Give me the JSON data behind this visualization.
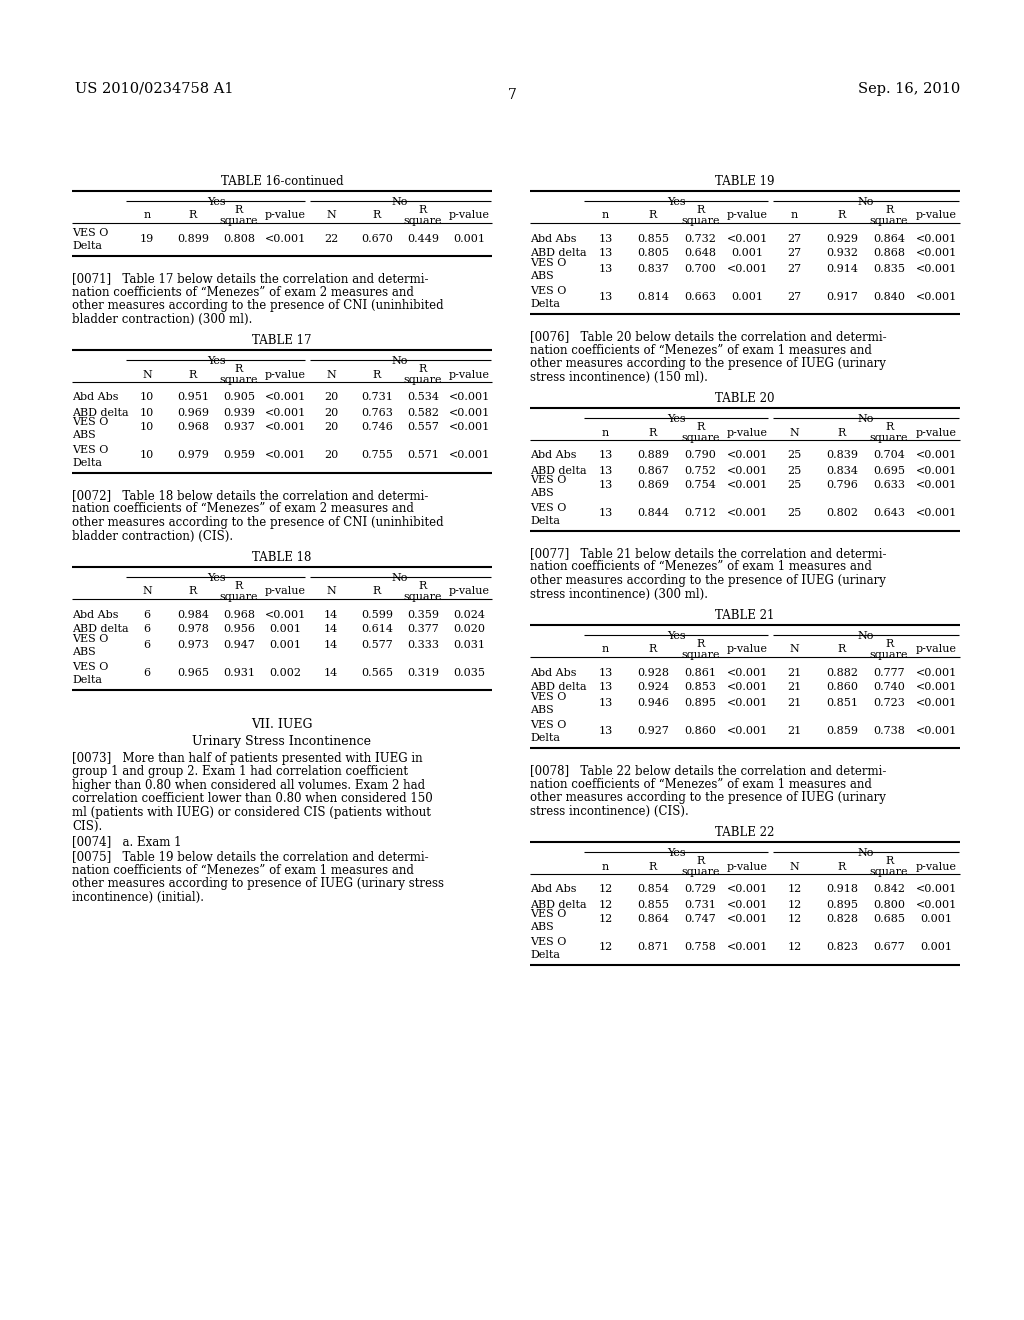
{
  "page_number": "7",
  "patent_number": "US 2010/0234758 A1",
  "patent_date": "Sep. 16, 2010",
  "background_color": "#ffffff",
  "text_color": "#000000",
  "table16_continued": {
    "title": "TABLE 16-continued",
    "yes_label": "Yes",
    "no_label": "No",
    "headers": [
      "n",
      "R",
      "R\nsquare",
      "p-value",
      "N",
      "R",
      "R\nsquare",
      "p-value"
    ],
    "rows": [
      [
        "VES O\nDelta",
        "19",
        "0.899",
        "0.808",
        "<0.001",
        "22",
        "0.670",
        "0.449",
        "0.001"
      ]
    ]
  },
  "para0071_lines": [
    "[0071]   Table 17 below details the correlation and determi-",
    "nation coefficients of “Menezes” of exam 2 measures and",
    "other measures according to the presence of CNI (uninhibited",
    "bladder contraction) (300 ml)."
  ],
  "table17": {
    "title": "TABLE 17",
    "yes_label": "Yes",
    "no_label": "No",
    "headers": [
      "N",
      "R",
      "R\nsquare",
      "p-value",
      "N",
      "R",
      "R\nsquare",
      "p-value"
    ],
    "rows": [
      [
        "Abd Abs",
        "10",
        "0.951",
        "0.905",
        "<0.001",
        "20",
        "0.731",
        "0.534",
        "<0.001"
      ],
      [
        "ABD delta",
        "10",
        "0.969",
        "0.939",
        "<0.001",
        "20",
        "0.763",
        "0.582",
        "<0.001"
      ],
      [
        "VES O\nABS",
        "10",
        "0.968",
        "0.937",
        "<0.001",
        "20",
        "0.746",
        "0.557",
        "<0.001"
      ],
      [
        "VES O\nDelta",
        "10",
        "0.979",
        "0.959",
        "<0.001",
        "20",
        "0.755",
        "0.571",
        "<0.001"
      ]
    ]
  },
  "para0072_lines": [
    "[0072]   Table 18 below details the correlation and determi-",
    "nation coefficients of “Menezes” of exam 2 measures and",
    "other measures according to the presence of CNI (uninhibited",
    "bladder contraction) (CIS)."
  ],
  "table18": {
    "title": "TABLE 18",
    "yes_label": "Yes",
    "no_label": "No",
    "headers": [
      "N",
      "R",
      "R\nsquare",
      "p-value",
      "N",
      "R",
      "R\nsquare",
      "p-value"
    ],
    "rows": [
      [
        "Abd Abs",
        "6",
        "0.984",
        "0.968",
        "<0.001",
        "14",
        "0.599",
        "0.359",
        "0.024"
      ],
      [
        "ABD delta",
        "6",
        "0.978",
        "0.956",
        "0.001",
        "14",
        "0.614",
        "0.377",
        "0.020"
      ],
      [
        "VES O\nABS",
        "6",
        "0.973",
        "0.947",
        "0.001",
        "14",
        "0.577",
        "0.333",
        "0.031"
      ],
      [
        "VES O\nDelta",
        "6",
        "0.965",
        "0.931",
        "0.002",
        "14",
        "0.565",
        "0.319",
        "0.035"
      ]
    ]
  },
  "section_heading": "VII. IUEG",
  "subsection_heading": "Urinary Stress Incontinence",
  "para0073_lines": [
    "[0073]   More than half of patients presented with IUEG in",
    "group 1 and group 2. Exam 1 had correlation coefficient",
    "higher than 0.80 when considered all volumes. Exam 2 had",
    "correlation coefficient lower than 0.80 when considered 150",
    "ml (patients with IUEG) or considered CIS (patients without",
    "CIS)."
  ],
  "para0074_lines": [
    "[0074]   a. Exam 1"
  ],
  "para0075_lines": [
    "[0075]   Table 19 below details the correlation and determi-",
    "nation coefficients of “Menezes” of exam 1 measures and",
    "other measures according to presence of IUEG (urinary stress",
    "incontinence) (initial)."
  ],
  "table19": {
    "title": "TABLE 19",
    "yes_label": "Yes",
    "no_label": "No",
    "headers": [
      "n",
      "R",
      "R\nsquare",
      "p-value",
      "n",
      "R",
      "R\nsquare",
      "p-value"
    ],
    "rows": [
      [
        "Abd Abs",
        "13",
        "0.855",
        "0.732",
        "<0.001",
        "27",
        "0.929",
        "0.864",
        "<0.001"
      ],
      [
        "ABD delta",
        "13",
        "0.805",
        "0.648",
        "0.001",
        "27",
        "0.932",
        "0.868",
        "<0.001"
      ],
      [
        "VES O\nABS",
        "13",
        "0.837",
        "0.700",
        "<0.001",
        "27",
        "0.914",
        "0.835",
        "<0.001"
      ],
      [
        "VES O\nDelta",
        "13",
        "0.814",
        "0.663",
        "0.001",
        "27",
        "0.917",
        "0.840",
        "<0.001"
      ]
    ]
  },
  "para0076_lines": [
    "[0076]   Table 20 below details the correlation and determi-",
    "nation coefficients of “Menezes” of exam 1 measures and",
    "other measures according to the presence of IUEG (urinary",
    "stress incontinence) (150 ml)."
  ],
  "table20": {
    "title": "TABLE 20",
    "yes_label": "Yes",
    "no_label": "No",
    "headers": [
      "n",
      "R",
      "R\nsquare",
      "p-value",
      "N",
      "R",
      "R\nsquare",
      "p-value"
    ],
    "rows": [
      [
        "Abd Abs",
        "13",
        "0.889",
        "0.790",
        "<0.001",
        "25",
        "0.839",
        "0.704",
        "<0.001"
      ],
      [
        "ABD delta",
        "13",
        "0.867",
        "0.752",
        "<0.001",
        "25",
        "0.834",
        "0.695",
        "<0.001"
      ],
      [
        "VES O\nABS",
        "13",
        "0.869",
        "0.754",
        "<0.001",
        "25",
        "0.796",
        "0.633",
        "<0.001"
      ],
      [
        "VES O\nDelta",
        "13",
        "0.844",
        "0.712",
        "<0.001",
        "25",
        "0.802",
        "0.643",
        "<0.001"
      ]
    ]
  },
  "para0077_lines": [
    "[0077]   Table 21 below details the correlation and determi-",
    "nation coefficients of “Menezes” of exam 1 measures and",
    "other measures according to the presence of IUEG (urinary",
    "stress incontinence) (300 ml)."
  ],
  "table21": {
    "title": "TABLE 21",
    "yes_label": "Yes",
    "no_label": "No",
    "headers": [
      "n",
      "R",
      "R\nsquare",
      "p-value",
      "N",
      "R",
      "R\nsquare",
      "p-value"
    ],
    "rows": [
      [
        "Abd Abs",
        "13",
        "0.928",
        "0.861",
        "<0.001",
        "21",
        "0.882",
        "0.777",
        "<0.001"
      ],
      [
        "ABD delta",
        "13",
        "0.924",
        "0.853",
        "<0.001",
        "21",
        "0.860",
        "0.740",
        "<0.001"
      ],
      [
        "VES O\nABS",
        "13",
        "0.946",
        "0.895",
        "<0.001",
        "21",
        "0.851",
        "0.723",
        "<0.001"
      ],
      [
        "VES O\nDelta",
        "13",
        "0.927",
        "0.860",
        "<0.001",
        "21",
        "0.859",
        "0.738",
        "<0.001"
      ]
    ]
  },
  "para0078_lines": [
    "[0078]   Table 22 below details the correlation and determi-",
    "nation coefficients of “Menezes” of exam 1 measures and",
    "other measures according to the presence of IUEG (urinary",
    "stress incontinence) (CIS)."
  ],
  "table22": {
    "title": "TABLE 22",
    "yes_label": "Yes",
    "no_label": "No",
    "headers": [
      "n",
      "R",
      "R\nsquare",
      "p-value",
      "N",
      "R",
      "R\nsquare",
      "p-value"
    ],
    "rows": [
      [
        "Abd Abs",
        "12",
        "0.854",
        "0.729",
        "<0.001",
        "12",
        "0.918",
        "0.842",
        "<0.001"
      ],
      [
        "ABD delta",
        "12",
        "0.855",
        "0.731",
        "<0.001",
        "12",
        "0.895",
        "0.800",
        "<0.001"
      ],
      [
        "VES O\nABS",
        "12",
        "0.864",
        "0.747",
        "<0.001",
        "12",
        "0.828",
        "0.685",
        "0.001"
      ],
      [
        "VES O\nDelta",
        "12",
        "0.871",
        "0.758",
        "<0.001",
        "12",
        "0.823",
        "0.677",
        "0.001"
      ]
    ]
  }
}
